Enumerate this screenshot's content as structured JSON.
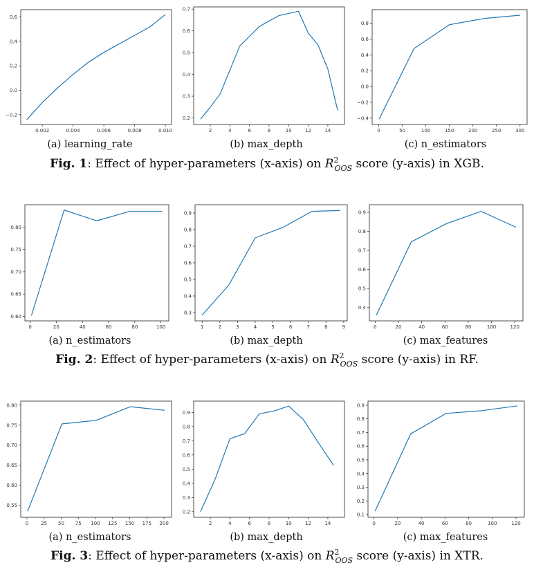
{
  "colors": {
    "line": "#1f77b4",
    "axis": "#222222"
  },
  "figures": [
    {
      "label": "Fig. 1",
      "caption_pre": ": Effect of hyper-parameters (x-axis) on ",
      "caption_math_main": "R",
      "caption_math_sup": "2",
      "caption_math_sub": "OOS",
      "caption_post": " score (y-axis) in XGB."
    },
    {
      "label": "Fig. 2",
      "caption_pre": ": Effect of hyper-parameters (x-axis) on ",
      "caption_math_main": "R",
      "caption_math_sup": "2",
      "caption_math_sub": "OOS",
      "caption_post": " score (y-axis) in RF."
    },
    {
      "label": "Fig. 3",
      "caption_pre": ": Effect of hyper-parameters (x-axis) on ",
      "caption_math_main": "R",
      "caption_math_sup": "2",
      "caption_math_sub": "OOS",
      "caption_post": " score (y-axis) in XTR."
    }
  ],
  "chart_data": [
    {
      "type": "line",
      "subcaption": "(a) learning_rate",
      "x": [
        0.001,
        0.002,
        0.003,
        0.004,
        0.005,
        0.006,
        0.007,
        0.008,
        0.009,
        0.01
      ],
      "y": [
        -0.24,
        -0.1,
        0.02,
        0.13,
        0.23,
        0.31,
        0.38,
        0.45,
        0.52,
        0.62
      ],
      "xlim": [
        0.0006,
        0.0104
      ],
      "ylim": [
        -0.28,
        0.66
      ],
      "xticks": [
        0.002,
        0.004,
        0.006,
        0.008,
        0.01
      ],
      "xticklabels": [
        "0.002",
        "0.004",
        "0.006",
        "0.008",
        "0.010"
      ],
      "yticks": [
        -0.2,
        0,
        0.2,
        0.4,
        0.6
      ],
      "yticklabels": [
        "−0.2",
        "0.0",
        "0.2",
        "0.4",
        "0.6"
      ]
    },
    {
      "type": "line",
      "subcaption": "(b) max_depth",
      "x": [
        1,
        2,
        3,
        4,
        5,
        6,
        7,
        8,
        9,
        10,
        11,
        12,
        13,
        14,
        15
      ],
      "y": [
        0.195,
        0.25,
        0.31,
        0.42,
        0.53,
        0.575,
        0.62,
        0.645,
        0.67,
        0.68,
        0.69,
        0.59,
        0.535,
        0.425,
        0.235
      ],
      "xlim": [
        0.3,
        15.7
      ],
      "ylim": [
        0.17,
        0.71
      ],
      "xticks": [
        2,
        4,
        6,
        8,
        10,
        12,
        14
      ],
      "xticklabels": [
        "2",
        "4",
        "6",
        "8",
        "10",
        "12",
        "14"
      ],
      "yticks": [
        0.2,
        0.3,
        0.4,
        0.5,
        0.6,
        0.7
      ],
      "yticklabels": [
        "0.2",
        "0.3",
        "0.4",
        "0.5",
        "0.6",
        "0.7"
      ]
    },
    {
      "type": "line",
      "subcaption": "(c) n_estimators",
      "x": [
        1,
        75,
        150,
        225,
        300
      ],
      "y": [
        -0.41,
        0.48,
        0.78,
        0.86,
        0.9
      ],
      "xlim": [
        -14,
        315
      ],
      "ylim": [
        -0.48,
        0.97
      ],
      "xticks": [
        0,
        50,
        100,
        150,
        200,
        250,
        300
      ],
      "xticklabels": [
        "0",
        "50",
        "100",
        "150",
        "200",
        "250",
        "300"
      ],
      "yticks": [
        -0.4,
        -0.2,
        0,
        0.2,
        0.4,
        0.6,
        0.8
      ],
      "yticklabels": [
        "−0.4",
        "−0.2",
        "0.0",
        "0.2",
        "0.4",
        "0.6",
        "0.8"
      ]
    },
    {
      "type": "line",
      "subcaption": "(a) n_estimators",
      "x": [
        1,
        26,
        51,
        76,
        101
      ],
      "y": [
        0.602,
        0.838,
        0.814,
        0.835,
        0.835
      ],
      "xlim": [
        -4,
        106
      ],
      "ylim": [
        0.59,
        0.85
      ],
      "xticks": [
        0,
        20,
        40,
        60,
        80,
        100
      ],
      "xticklabels": [
        "0",
        "20",
        "40",
        "60",
        "80",
        "100"
      ],
      "yticks": [
        0.6,
        0.65,
        0.7,
        0.75,
        0.8
      ],
      "yticklabels": [
        "0.60",
        "0.65",
        "0.70",
        "0.75",
        "0.80"
      ]
    },
    {
      "type": "line",
      "subcaption": "(b) max_depth",
      "x": [
        1,
        2.5,
        4,
        5.6,
        7.2,
        8.8
      ],
      "y": [
        0.285,
        0.465,
        0.75,
        0.815,
        0.91,
        0.915
      ],
      "xlim": [
        0.6,
        9.2
      ],
      "ylim": [
        0.25,
        0.95
      ],
      "xticks": [
        1,
        2,
        3,
        4,
        5,
        6,
        7,
        8,
        9
      ],
      "xticklabels": [
        "1",
        "2",
        "3",
        "4",
        "5",
        "6",
        "7",
        "8",
        "9"
      ],
      "yticks": [
        0.3,
        0.4,
        0.5,
        0.6,
        0.7,
        0.8,
        0.9
      ],
      "yticklabels": [
        "0.3",
        "0.4",
        "0.5",
        "0.6",
        "0.7",
        "0.8",
        "0.9"
      ]
    },
    {
      "type": "line",
      "subcaption": "(c) max_features",
      "x": [
        1,
        31,
        61,
        91,
        121
      ],
      "y": [
        0.36,
        0.745,
        0.84,
        0.905,
        0.822
      ],
      "xlim": [
        -5,
        127
      ],
      "ylim": [
        0.33,
        0.94
      ],
      "xticks": [
        0,
        20,
        40,
        60,
        80,
        100,
        120
      ],
      "xticklabels": [
        "0",
        "20",
        "40",
        "60",
        "80",
        "100",
        "120"
      ],
      "yticks": [
        0.4,
        0.5,
        0.6,
        0.7,
        0.8,
        0.9
      ],
      "yticklabels": [
        "0.4",
        "0.5",
        "0.6",
        "0.7",
        "0.8",
        "0.9"
      ]
    },
    {
      "type": "line",
      "subcaption": "(a) n_estimators",
      "x": [
        1,
        51,
        101,
        151,
        201
      ],
      "y": [
        0.535,
        0.753,
        0.762,
        0.796,
        0.787
      ],
      "xlim": [
        -9,
        211
      ],
      "ylim": [
        0.52,
        0.81
      ],
      "xticks": [
        0,
        25,
        50,
        75,
        100,
        125,
        150,
        175,
        200
      ],
      "xticklabels": [
        "0",
        "25",
        "50",
        "75",
        "100",
        "125",
        "150",
        "175",
        "200"
      ],
      "yticks": [
        0.55,
        0.6,
        0.65,
        0.7,
        0.75,
        0.8
      ],
      "yticklabels": [
        "0.55",
        "0.60",
        "0.65",
        "0.70",
        "0.75",
        "0.80"
      ]
    },
    {
      "type": "line",
      "subcaption": "(b) max_depth",
      "x": [
        1,
        2.5,
        4,
        5.5,
        7,
        8.5,
        10,
        11.5,
        13,
        14.6
      ],
      "y": [
        0.2,
        0.43,
        0.715,
        0.75,
        0.89,
        0.91,
        0.945,
        0.85,
        0.69,
        0.525
      ],
      "xlim": [
        0.3,
        15.7
      ],
      "ylim": [
        0.16,
        0.98
      ],
      "xticks": [
        2,
        4,
        6,
        8,
        10,
        12,
        14
      ],
      "xticklabels": [
        "2",
        "4",
        "6",
        "8",
        "10",
        "12",
        "14"
      ],
      "yticks": [
        0.2,
        0.3,
        0.4,
        0.5,
        0.6,
        0.7,
        0.8,
        0.9
      ],
      "yticklabels": [
        "0.2",
        "0.3",
        "0.4",
        "0.5",
        "0.6",
        "0.7",
        "0.8",
        "0.9"
      ]
    },
    {
      "type": "line",
      "subcaption": "(c) max_features",
      "x": [
        1,
        31,
        61,
        91,
        121
      ],
      "y": [
        0.125,
        0.69,
        0.84,
        0.86,
        0.895
      ],
      "xlim": [
        -5,
        127
      ],
      "ylim": [
        0.08,
        0.93
      ],
      "xticks": [
        0,
        20,
        40,
        60,
        80,
        100,
        120
      ],
      "xticklabels": [
        "0",
        "20",
        "40",
        "60",
        "80",
        "100",
        "120"
      ],
      "yticks": [
        0.1,
        0.2,
        0.3,
        0.4,
        0.5,
        0.6,
        0.7,
        0.8,
        0.9
      ],
      "yticklabels": [
        "0.1",
        "0.2",
        "0.3",
        "0.4",
        "0.5",
        "0.6",
        "0.7",
        "0.8",
        "0.9"
      ]
    }
  ]
}
